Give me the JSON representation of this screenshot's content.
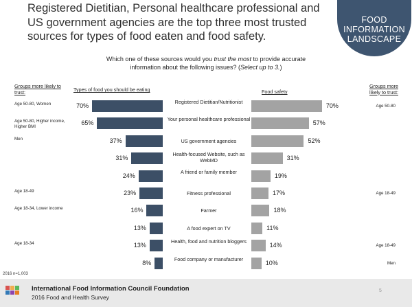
{
  "headline": "Registered Dietitian, Personal healthcare professional and US government agencies are the top three most trusted sources for types of food eaten and food safety.",
  "badge": {
    "line1": "FOOD",
    "line2": "INFORMATION",
    "line3": "LANDSCAPE",
    "color": "#3e5570"
  },
  "question": {
    "line1_pre": "Which one of these sources would you ",
    "line1_em": "trust the most",
    "line1_post": " to provide accurate",
    "line2_pre": "information about the following issues? (",
    "line2_em": "Select up to 3.",
    "line2_post": ")"
  },
  "headers": {
    "groups_left": "Groups more likely to trust:",
    "types": "Types of food you should be eating",
    "food_safety": "Food safety",
    "groups_right": "Groups more likely to trust:"
  },
  "chart_data": {
    "type": "bar",
    "categories": [
      "Registered Dietitian/Nutritionist",
      "Your personal healthcare professional",
      "US government agencies",
      "Health-focused Website, such as WebMD",
      "A friend or family member",
      "Fitness professional",
      "Farmer",
      "A food expert on TV",
      "Health, food and nutrition bloggers",
      "Food company or manufacturer"
    ],
    "series": [
      {
        "name": "Types of food you should be eating",
        "values": [
          70,
          65,
          37,
          31,
          24,
          23,
          16,
          13,
          13,
          8
        ],
        "color": "#3c4f66"
      },
      {
        "name": "Food safety",
        "values": [
          70,
          57,
          52,
          31,
          19,
          17,
          18,
          11,
          14,
          10
        ],
        "color": "#a3a3a3"
      }
    ],
    "labels_left": [
      "70%",
      "65%",
      "37%",
      "31%",
      "24%",
      "23%",
      "16%",
      "13%",
      "13%",
      "8%"
    ],
    "labels_right": [
      "70%",
      "57%",
      "52%",
      "31%",
      "19%",
      "17%",
      "18%",
      "11%",
      "14%",
      "10%"
    ],
    "groups_left": [
      "Age 50-80, Women",
      "Age 50-80, Higher income, Higher BMI",
      "Men",
      "",
      "",
      "Age 18-49",
      "Age 18-34, Lower income",
      "",
      "Age 18-34",
      ""
    ],
    "groups_right": [
      "Age 50-80",
      "",
      "",
      "",
      "",
      "Age 18-49",
      "",
      "",
      "Age 18-49",
      "Men"
    ]
  },
  "sample": "2016 n=1,003",
  "footer": {
    "org": "International Food Information Council Foundation",
    "survey": "2016 Food and Health Survey",
    "page": "5"
  }
}
